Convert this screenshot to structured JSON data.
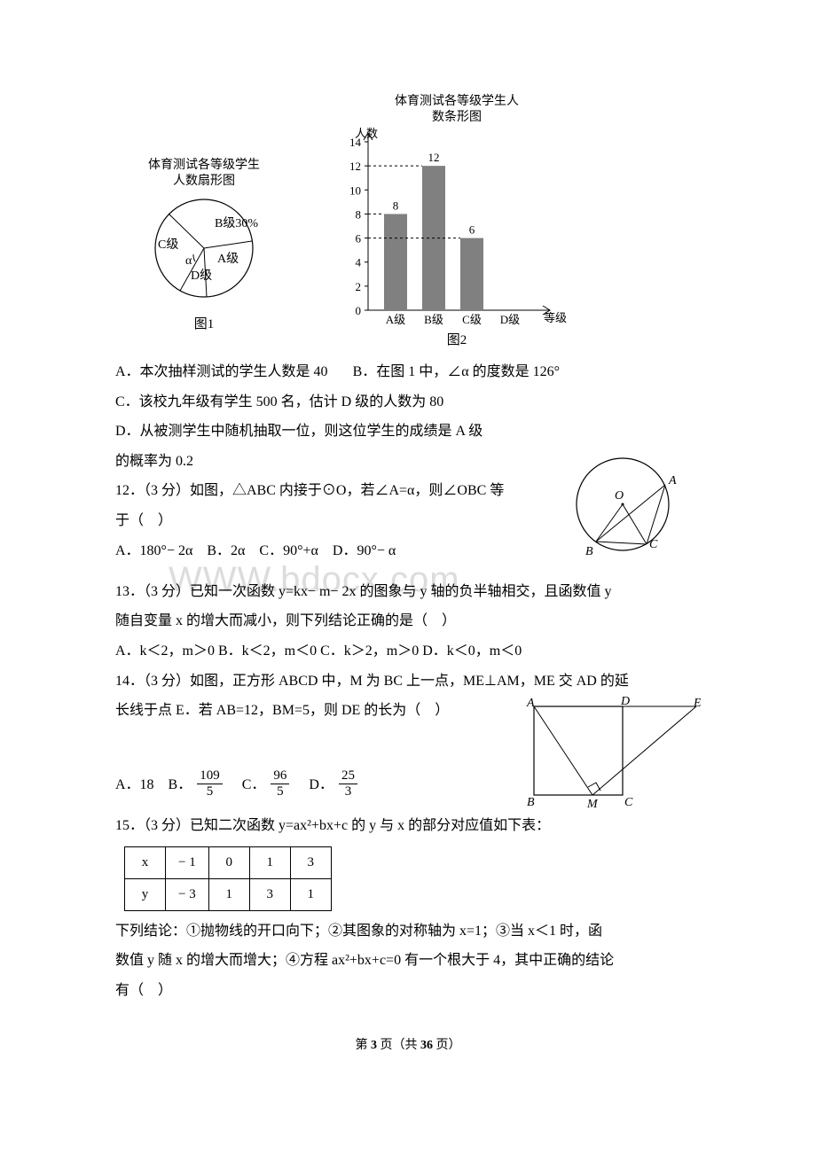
{
  "pie": {
    "caption_line1": "体育测试各等级学生",
    "caption_line2": "人数扇形图",
    "label_b": "B级30%",
    "label_c": "C级",
    "label_alpha": "α",
    "label_a": "A级",
    "label_d": "D级",
    "fig_label": "图1"
  },
  "bar": {
    "title_line1": "体育测试各等级学生人",
    "title_line2": "数条形图",
    "y_label": "人数",
    "x_label": "等级",
    "values": {
      "A": 8,
      "B": 12,
      "C": 6,
      "D": 0
    },
    "ticks": [
      0,
      2,
      4,
      6,
      8,
      10,
      12,
      14
    ],
    "categories": [
      "A级",
      "B级",
      "C级",
      "D级"
    ],
    "fig_label": "图2",
    "bar_color": "#808080",
    "axis_color": "#000000"
  },
  "q11": {
    "opt_a": "A．本次抽样测试的学生人数是 40",
    "opt_b": "B．在图 1 中，∠α 的度数是 126°",
    "opt_c": "C．该校九年级有学生 500 名，估计 D 级的人数为 80",
    "opt_d_l1": "D．从被测学生中随机抽取一位，则这位学生的成绩是 A 级",
    "opt_d_l2": "的概率为 0.2"
  },
  "q12": {
    "stem_l1": "12．（3 分）如图，△ABC 内接于⊙O，若∠A=α，则∠OBC 等",
    "stem_l2": "于（　）",
    "opts": "A．180°− 2α　B．2α　C．90°+α　D．90°− α",
    "circle": {
      "O": "O",
      "A": "A",
      "B": "B",
      "C": "C"
    }
  },
  "q13": {
    "stem_l1": "13．（3 分）已知一次函数 y=kx− m− 2x 的图象与 y 轴的负半轴相交，且函数值 y",
    "stem_l2": "随自变量 x 的增大而减小，则下列结论正确的是（　）",
    "opts": "A．k＜2，m＞0 B．k＜2，m＜0 C．k＞2，m＞0 D．k＜0，m＜0"
  },
  "q14": {
    "stem_l1": "14．（3 分）如图，正方形 ABCD 中，M 为 BC 上一点，ME⊥AM，ME 交 AD 的延",
    "stem_l2": "长线于点 E．若 AB=12，BM=5，则 DE 的长为（　）",
    "opt_a": "A．18　B．",
    "frac_b_n": "109",
    "frac_b_d": "5",
    "mid_c": "　C．",
    "frac_c_n": "96",
    "frac_c_d": "5",
    "mid_d": "　D．",
    "frac_d_n": "25",
    "frac_d_d": "3",
    "rect": {
      "A": "A",
      "B": "B",
      "C": "C",
      "D": "D",
      "M": "M",
      "E": "E"
    }
  },
  "q15": {
    "stem": "15．（3 分）已知二次函数 y=ax²+bx+c 的 y 与 x 的部分对应值如下表：",
    "header_x": "x",
    "header_y": "y",
    "xrow": [
      "− 1",
      "0",
      "1",
      "3"
    ],
    "yrow": [
      "− 3",
      "1",
      "3",
      "1"
    ],
    "concl_l1": "下列结论：①抛物线的开口向下；②其图象的对称轴为 x=1；③当 x＜1 时，函",
    "concl_l2": "数值 y 随 x 的增大而增大；④方程 ax²+bx+c=0 有一个根大于 4，其中正确的结论",
    "concl_l3": "有（　）"
  },
  "footer": {
    "prefix": "第 ",
    "page": "3",
    "middle": " 页（共 ",
    "total": "36",
    "suffix": " 页）"
  }
}
